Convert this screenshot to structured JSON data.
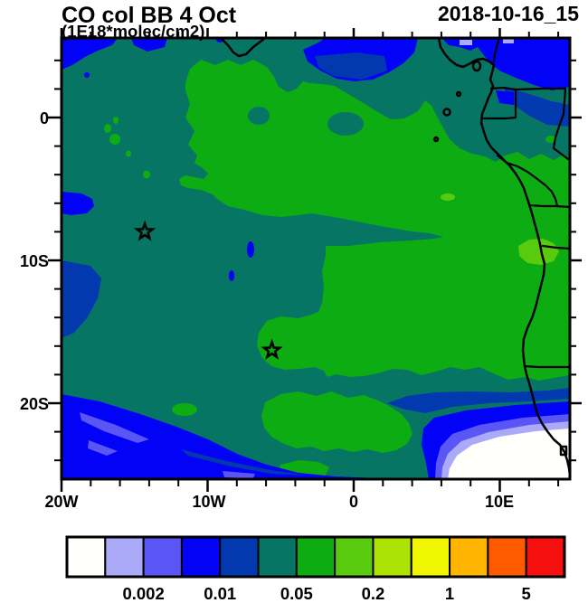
{
  "header": {
    "title": "CO col BB 4 Oct",
    "subtitle": "(1E18*molec/cm2)",
    "date_label": "2018-10-16_15"
  },
  "axes": {
    "y_tick_labels": [
      "0",
      "10S",
      "20S"
    ],
    "x_tick_labels": [
      "20W",
      "10W",
      "0",
      "10E"
    ]
  },
  "palette": {
    "white": "#FFFFFC",
    "lavender": "#AAAAF8",
    "purple": "#5A55F5",
    "blue": "#0202F7",
    "dark_blue": "#0239AE",
    "teal": "#077564",
    "green": "#0CAC12",
    "light_green": "#58CB0F",
    "yellow_green": "#ACE206",
    "yellow": "#F0F500",
    "orange": "#FFB400",
    "orange_red": "#FF5A00",
    "red": "#F50F0F",
    "ink": "#000000"
  },
  "colorbar": {
    "colors": [
      "#FFFFFC",
      "#AAAAF8",
      "#5A55F5",
      "#0202F7",
      "#0239AE",
      "#077564",
      "#0CAC12",
      "#58CB0F",
      "#ACE206",
      "#F0F500",
      "#FFB400",
      "#FF5A00",
      "#F50F0F"
    ],
    "labels": [
      "0.002",
      "0.01",
      "0.05",
      "0.2",
      "1",
      "5"
    ],
    "label_boundary_indices": [
      2,
      4,
      6,
      8,
      10,
      12
    ]
  },
  "chart_data": {
    "type": "filled_contour_map",
    "variable": "CO column (biomass burning, emitted 4 Oct)",
    "units": "1E18*molec/cm2",
    "title": "CO col BB 4 Oct",
    "timestamp": "2018-10-16_15",
    "lon_range_deg": [
      -20,
      14.8
    ],
    "lat_range_deg": [
      -25.3,
      5.6
    ],
    "grid": false,
    "contour_levels": [
      0.001,
      0.002,
      0.005,
      0.01,
      0.02,
      0.05,
      0.1,
      0.2,
      0.5,
      1,
      2,
      5
    ],
    "colorbar_tick_labels": [
      "0.002",
      "0.01",
      "0.05",
      "0.2",
      "1",
      "5"
    ],
    "regions": [
      {
        "level_band": "0.02-0.05",
        "color_name": "teal",
        "description": "background value over most of the South Atlantic domain"
      },
      {
        "level_band": "0.05-0.1",
        "color_name": "green",
        "description": "large CO plume covering the center and east of the domain toward the Congo/Angola coast, lobes reaching 8W at 3S and a tongue near 6W 16S"
      },
      {
        "level_band": "0.1-0.2",
        "color_name": "light_green",
        "description": "small maxima near the Angola coast around 11S-12E and near 21S and small spot at 6E 5.5S"
      },
      {
        "level_band": "0.01-0.02",
        "color_name": "dark_blue",
        "description": "bands along north edge, west edge mid-latitudes, and rim of southeastern minimum"
      },
      {
        "level_band": "0.005-0.01",
        "color_name": "blue",
        "description": "north edge corners, patch at 20W 5-7S, southwest corner band along 24-25S"
      },
      {
        "level_band": "0.001-0.005",
        "color_name": "purple_lavender",
        "description": "thin fringes inside southwest band and around the southeastern minimum"
      },
      {
        "level_band": "<0.001",
        "color_name": "white",
        "description": "minimum cell off the Namibian coast in the bottom-right corner, about 8-15E, 22-25S"
      }
    ],
    "markers": [
      {
        "shape": "star",
        "lon": -14.3,
        "lat": -8.0
      },
      {
        "shape": "star",
        "lon": -5.6,
        "lat": -16.3
      }
    ],
    "coastline": "West African coast from Liberia dip at top edge, Gulf of Guinea with Bioko / Principe / Sao Tome / Annobon islands, then Gabon-Congo-Angola-Namibia coast to bottom right",
    "borders": [
      "Nigeria-Cameroon",
      "Equatorial Guinea",
      "Cameroon-Gabon-Congo",
      "Congo-DRC",
      "DRC-Angola",
      "Angola-Namibia"
    ]
  }
}
